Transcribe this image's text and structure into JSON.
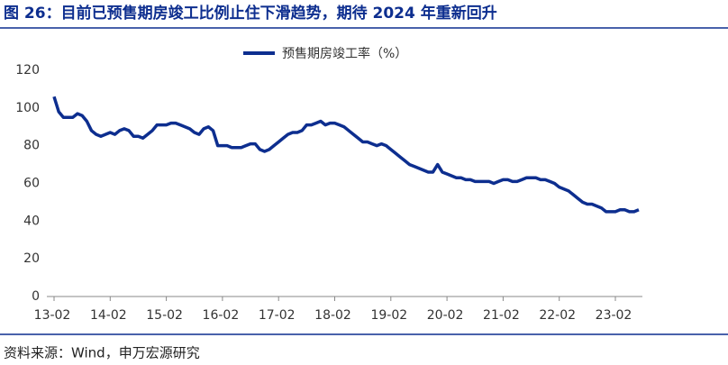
{
  "chart_data": {
    "type": "line",
    "title": "图 26：目前已预售期房竣工比例止住下滑趋势，期待 2024 年重新回升",
    "source": "资料来源：Wind，申万宏源研究",
    "categories": [
      "13-02",
      null,
      null,
      null,
      null,
      null,
      null,
      null,
      null,
      null,
      null,
      null,
      "14-02",
      null,
      null,
      null,
      null,
      null,
      null,
      null,
      null,
      null,
      null,
      null,
      "15-02",
      null,
      null,
      null,
      null,
      null,
      null,
      null,
      null,
      null,
      null,
      null,
      "16-02",
      null,
      null,
      null,
      null,
      null,
      null,
      null,
      null,
      null,
      null,
      null,
      "17-02",
      null,
      null,
      null,
      null,
      null,
      null,
      null,
      null,
      null,
      null,
      null,
      "18-02",
      null,
      null,
      null,
      null,
      null,
      null,
      null,
      null,
      null,
      null,
      null,
      "19-02",
      null,
      null,
      null,
      null,
      null,
      null,
      null,
      null,
      null,
      null,
      null,
      "20-02",
      null,
      null,
      null,
      null,
      null,
      null,
      null,
      null,
      null,
      null,
      null,
      "21-02",
      null,
      null,
      null,
      null,
      null,
      null,
      null,
      null,
      null,
      null,
      null,
      "22-02",
      null,
      null,
      null,
      null,
      null,
      null,
      null,
      null,
      null,
      null,
      null,
      "23-02",
      null,
      null,
      null,
      null,
      null
    ],
    "series": [
      {
        "name": "预售期房竣工率（%）",
        "color": "#0d2e8f",
        "values": [
          106,
          98,
          95,
          95,
          95,
          97,
          96,
          93,
          88,
          86,
          85,
          86,
          87,
          86,
          88,
          89,
          88,
          85,
          85,
          84,
          86,
          88,
          91,
          91,
          91,
          92,
          92,
          91,
          90,
          89,
          87,
          86,
          89,
          90,
          88,
          80,
          80,
          80,
          79,
          79,
          79,
          80,
          81,
          81,
          78,
          77,
          78,
          80,
          82,
          84,
          86,
          87,
          87,
          88,
          91,
          91,
          92,
          93,
          91,
          92,
          92,
          91,
          90,
          88,
          86,
          84,
          82,
          82,
          81,
          80,
          81,
          80,
          78,
          76,
          74,
          72,
          70,
          69,
          68,
          67,
          66,
          66,
          70,
          66,
          65,
          64,
          63,
          63,
          62,
          62,
          61,
          61,
          61,
          61,
          60,
          61,
          62,
          62,
          61,
          61,
          62,
          63,
          63,
          63,
          62,
          62,
          61,
          60,
          58,
          57,
          56,
          54,
          52,
          50,
          49,
          49,
          48,
          47,
          45,
          45,
          45,
          46,
          46,
          45,
          45,
          46
        ]
      }
    ],
    "ylim": [
      0,
      120
    ],
    "yticks": [
      0,
      20,
      40,
      60,
      80,
      100,
      120
    ],
    "grid": false
  }
}
